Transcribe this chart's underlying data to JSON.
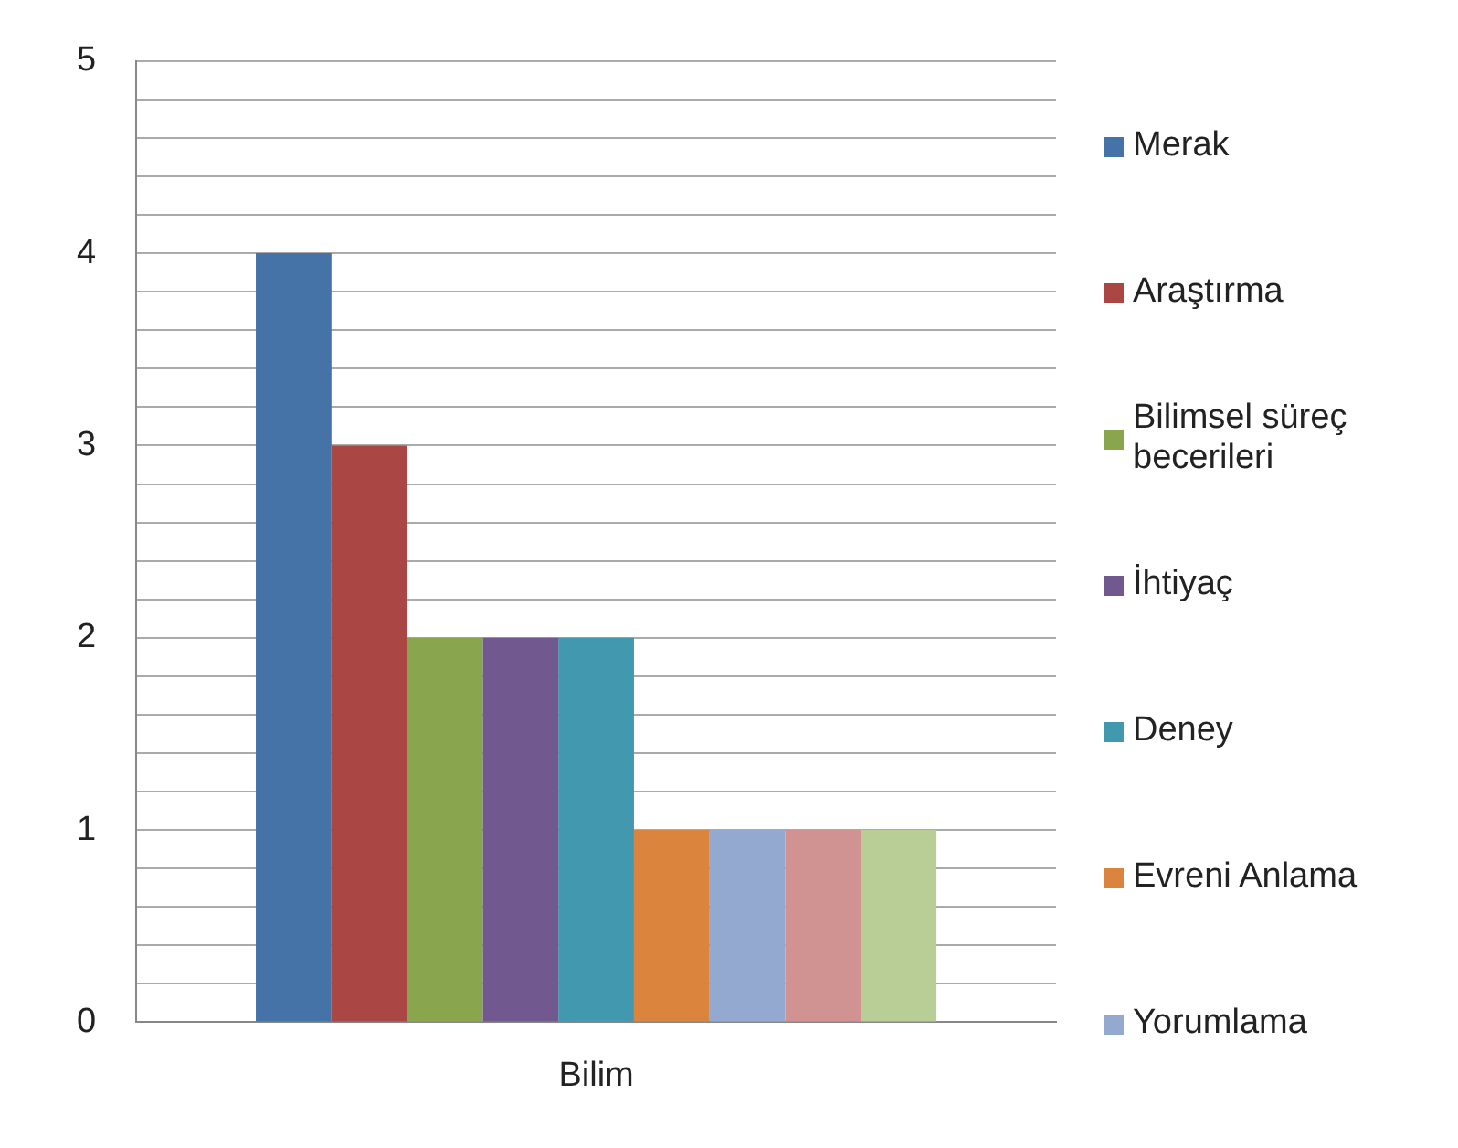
{
  "chart_data": {
    "type": "bar",
    "categories": [
      "Bilim"
    ],
    "series": [
      {
        "name": "Merak",
        "color": "#4572a7",
        "values": [
          4
        ]
      },
      {
        "name": "Araştırma",
        "color": "#aa4643",
        "values": [
          3
        ]
      },
      {
        "name": "Bilimsel süreç becerileri",
        "color": "#89a54e",
        "values": [
          2
        ]
      },
      {
        "name": "İhtiyaç",
        "color": "#71588f",
        "values": [
          2
        ]
      },
      {
        "name": "Deney",
        "color": "#4198af",
        "values": [
          2
        ]
      },
      {
        "name": "Evreni Anlama",
        "color": "#db843d",
        "values": [
          1
        ]
      },
      {
        "name": "Yorumlama",
        "color": "#93a9cf",
        "values": [
          1
        ]
      },
      {
        "color": "#d19392",
        "values": [
          1
        ]
      },
      {
        "color": "#b9cd96",
        "values": [
          1
        ]
      }
    ],
    "ylim": [
      0,
      5
    ],
    "yticks": [
      0,
      {
        "value": 0.2,
        "label": null
      },
      {
        "value": 0.4,
        "label": null
      },
      {
        "value": 0.6,
        "label": null
      },
      {
        "value": 0.8,
        "label": null
      },
      1,
      {
        "value": 1.2,
        "label": null
      },
      {
        "value": 1.4,
        "label": null
      },
      {
        "value": 1.6,
        "label": null
      },
      {
        "value": 1.8,
        "label": null
      },
      2,
      {
        "value": 2.2,
        "label": null
      },
      {
        "value": 2.4,
        "label": null
      },
      {
        "value": 2.6,
        "label": null
      },
      {
        "value": 2.8,
        "label": null
      },
      3,
      {
        "value": 3.2,
        "label": null
      },
      {
        "value": 3.4,
        "label": null
      },
      {
        "value": 3.6,
        "label": null
      },
      {
        "value": 3.8,
        "label": null
      },
      4,
      {
        "value": 4.2,
        "label": null
      },
      {
        "value": 4.4,
        "label": null
      },
      {
        "value": 4.6,
        "label": null
      },
      {
        "value": 4.8,
        "label": null
      },
      5
    ],
    "grid": "y",
    "legend": "right"
  }
}
